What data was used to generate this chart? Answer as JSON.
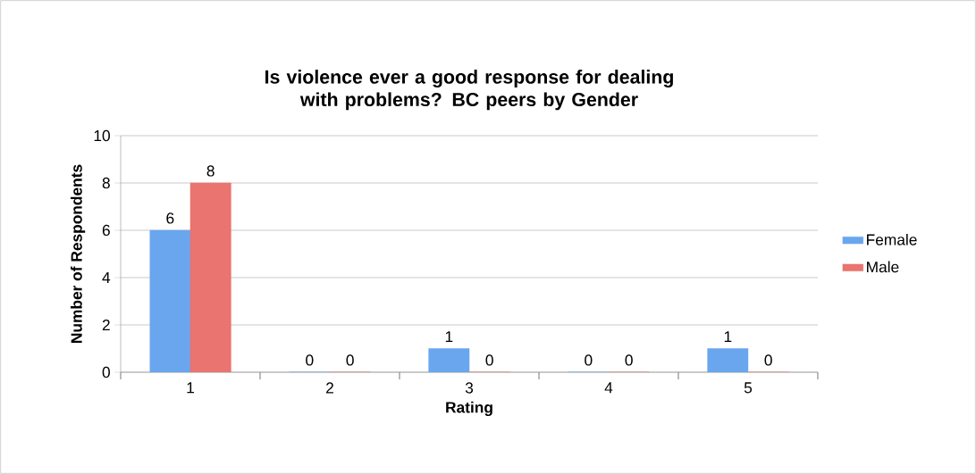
{
  "chart_data": {
    "type": "bar",
    "title": "Is violence ever a good response for dealing with problems? BC peers by Gender",
    "xlabel": "Rating",
    "ylabel": "Number of Respondents",
    "categories": [
      "1",
      "2",
      "3",
      "4",
      "5"
    ],
    "series": [
      {
        "name": "Female",
        "color": "#6aa6ee",
        "values": [
          6,
          0,
          1,
          0,
          1
        ]
      },
      {
        "name": "Male",
        "color": "#ea7470",
        "values": [
          8,
          0,
          0,
          0,
          0
        ]
      }
    ],
    "ylim": [
      0,
      10
    ],
    "yticks": [
      0,
      2,
      4,
      6,
      8,
      10
    ],
    "grid": "y",
    "legend": "right",
    "data_labels": true
  }
}
